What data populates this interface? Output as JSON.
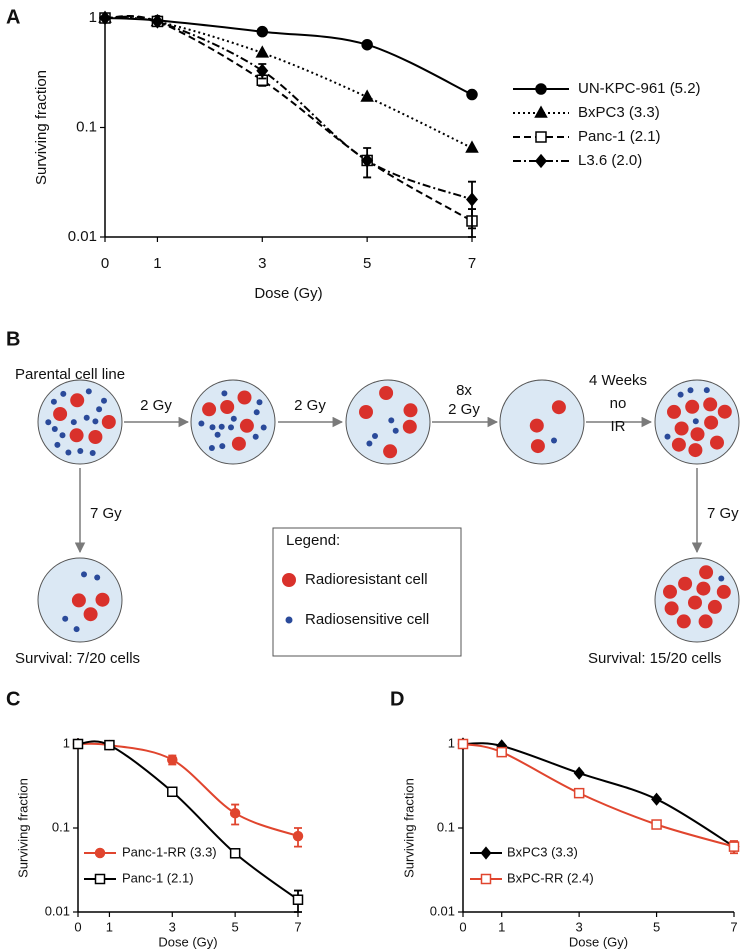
{
  "chart_data": [
    {
      "panel": "A",
      "type": "line",
      "log_scale": true,
      "legend": "right",
      "xlabel": "Dose (Gy)",
      "ylabel": "Surviving fraction",
      "x": [
        0,
        1,
        3,
        5,
        7
      ],
      "xlim": [
        0,
        7
      ],
      "xticks": [
        0,
        1,
        3,
        5,
        7
      ],
      "ylim": [
        0.01,
        1
      ],
      "yticks": [
        0.01,
        0.1,
        1
      ],
      "series": [
        {
          "name": "UN-KPC-961 (5.2)",
          "color": "#000000",
          "marker": "circle",
          "dash": "solid",
          "values": [
            1,
            0.95,
            0.75,
            0.57,
            0.2
          ],
          "errors": [
            null,
            null,
            null,
            null,
            null
          ]
        },
        {
          "name": "BxPC3 (3.3)",
          "color": "#000000",
          "marker": "triangle",
          "dash": "dotted",
          "values": [
            1,
            0.93,
            0.48,
            0.19,
            0.065
          ],
          "errors": [
            null,
            null,
            null,
            null,
            null
          ]
        },
        {
          "name": "Panc-1 (2.1)",
          "color": "#000000",
          "marker": "square-open",
          "dash": "dashed",
          "values": [
            1,
            0.93,
            0.27,
            0.05,
            0.014
          ],
          "errors": [
            null,
            null,
            0.03,
            0.015,
            0.004
          ]
        },
        {
          "name": "L3.6 (2.0)",
          "color": "#000000",
          "marker": "diamond",
          "dash": "dashdot",
          "values": [
            1,
            0.93,
            0.33,
            0.05,
            0.022
          ],
          "errors": [
            null,
            null,
            0.05,
            null,
            0.01
          ]
        }
      ]
    },
    {
      "panel": "C",
      "type": "line",
      "log_scale": true,
      "legend": "lower-left",
      "xlabel": "Dose (Gy)",
      "ylabel": "Surviving fraction",
      "x": [
        0,
        1,
        3,
        5,
        7
      ],
      "xlim": [
        0,
        7
      ],
      "xticks": [
        0,
        1,
        3,
        5,
        7
      ],
      "ylim": [
        0.01,
        1
      ],
      "yticks": [
        0.01,
        0.1,
        1
      ],
      "series": [
        {
          "name": "Panc-1-RR (3.3)",
          "color": "#e0452e",
          "marker": "circle",
          "dash": "solid",
          "values": [
            1,
            0.97,
            0.65,
            0.15,
            0.08
          ],
          "errors": [
            null,
            null,
            0.08,
            0.04,
            0.02
          ]
        },
        {
          "name": "Panc-1 (2.1)",
          "color": "#000000",
          "marker": "square-open",
          "dash": "solid",
          "values": [
            1,
            0.97,
            0.27,
            0.05,
            0.014
          ],
          "errors": [
            null,
            null,
            null,
            null,
            0.004
          ]
        }
      ]
    },
    {
      "panel": "D",
      "type": "line",
      "log_scale": true,
      "legend": "lower-left",
      "xlabel": "Dose (Gy)",
      "ylabel": "Surviving fraction",
      "x": [
        0,
        1,
        3,
        5,
        7
      ],
      "xlim": [
        0,
        7
      ],
      "xticks": [
        0,
        1,
        3,
        5,
        7
      ],
      "ylim": [
        0.01,
        1
      ],
      "yticks": [
        0.01,
        0.1,
        1
      ],
      "series": [
        {
          "name": "BxPC3 (3.3)",
          "color": "#000000",
          "marker": "diamond",
          "dash": "solid",
          "values": [
            1,
            0.95,
            0.45,
            0.22,
            0.06
          ],
          "errors": [
            null,
            null,
            null,
            null,
            null
          ]
        },
        {
          "name": "BxPC-RR (2.4)",
          "color": "#e0452e",
          "marker": "square-open",
          "dash": "solid",
          "values": [
            1,
            0.8,
            0.26,
            0.11,
            0.06
          ],
          "errors": [
            null,
            null,
            null,
            null,
            0.01
          ]
        }
      ]
    }
  ],
  "diagram": {
    "panel": "B",
    "start_label": "Parental cell line",
    "arrows": [
      {
        "label": "2 Gy"
      },
      {
        "label": "2 Gy"
      },
      {
        "lines": [
          "8x",
          "2 Gy"
        ]
      },
      {
        "lines": [
          "4 Weeks",
          "no",
          "IR"
        ]
      },
      {
        "label": "7 Gy"
      },
      {
        "label": "7 Gy"
      }
    ],
    "legend": {
      "title": "Legend:",
      "items": [
        "Radioresistant cell",
        "Radiosensitive cell"
      ]
    },
    "survival": [
      "Survival: 7/20 cells",
      "Survival: 15/20 cells"
    ]
  }
}
